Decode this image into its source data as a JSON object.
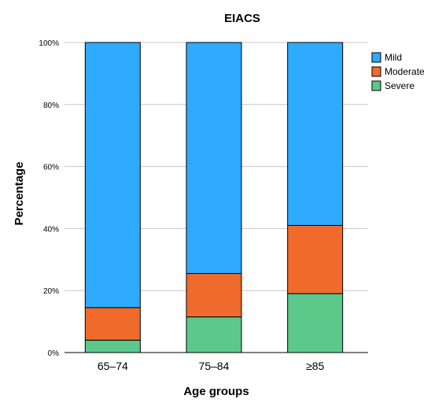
{
  "chart_data": {
    "type": "bar",
    "stacked": true,
    "title": "EIACS",
    "xlabel": "Age groups",
    "ylabel": "Percentage",
    "categories": [
      "65–74",
      "75–84",
      "≥85"
    ],
    "series": [
      {
        "name": "Severe",
        "color": "#5cc98a",
        "values": [
          4,
          11.5,
          19
        ]
      },
      {
        "name": "Moderate",
        "color": "#f06a2b",
        "values": [
          10.5,
          14,
          22
        ]
      },
      {
        "name": "Mild",
        "color": "#2eaaff",
        "values": [
          85.5,
          74.5,
          59
        ]
      }
    ],
    "legend_order": [
      "Mild",
      "Moderate",
      "Severe"
    ],
    "ylim": [
      0,
      100
    ],
    "yticks": [
      "0%",
      "20%",
      "40%",
      "60%",
      "80%",
      "100%"
    ],
    "grid": true,
    "legend": "top-right"
  }
}
